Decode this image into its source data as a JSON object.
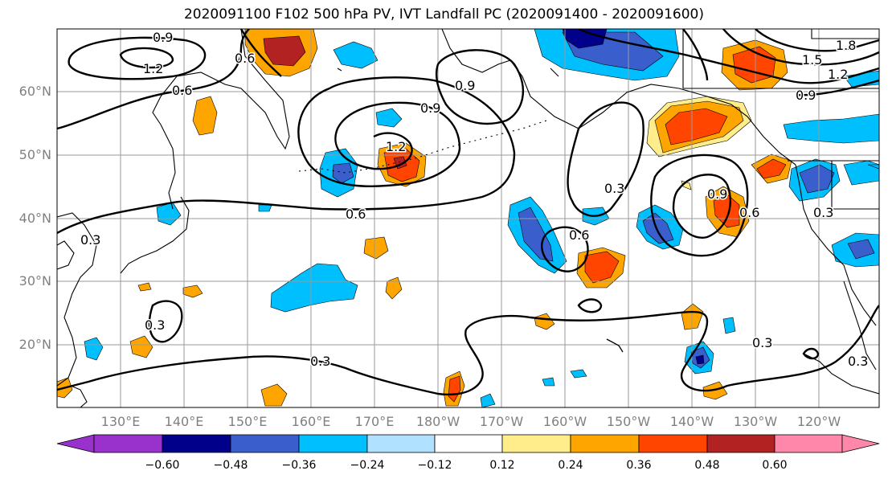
{
  "title": "2020091100 F102 500 hPa PV, IVT Landfall PC (2020091400 - 2020091600)",
  "latitude_labels": [
    "60°N",
    "50°N",
    "40°N",
    "30°N",
    "20°N"
  ],
  "longitude_labels": [
    "130°E",
    "140°E",
    "150°E",
    "160°E",
    "170°E",
    "180°W",
    "170°W",
    "160°W",
    "150°W",
    "140°W",
    "130°W",
    "120°W"
  ],
  "contour_labels": [
    "0.9",
    "1.2",
    "0.6",
    "0.6",
    "0.9",
    "0.9",
    "1.2",
    "0.6",
    "0.3",
    "0.9",
    "0.6",
    "0.6",
    "0.3",
    "0.3",
    "0.3",
    "0.3",
    "0.9",
    "1.8",
    "1.5",
    "1.2",
    "0.3",
    "0.3"
  ],
  "colorbar": {
    "tick_labels": [
      "−0.60",
      "−0.48",
      "−0.36",
      "−0.24",
      "−0.12",
      "0.12",
      "0.24",
      "0.36",
      "0.48",
      "0.60"
    ],
    "colors": [
      "#9932cc",
      "#00008b",
      "#3a5fcd",
      "#00bfff",
      "#b0e2ff",
      "#ffffff",
      "#ffec8b",
      "#ffa500",
      "#ff4500",
      "#b22222",
      "#ff88aa"
    ]
  }
}
